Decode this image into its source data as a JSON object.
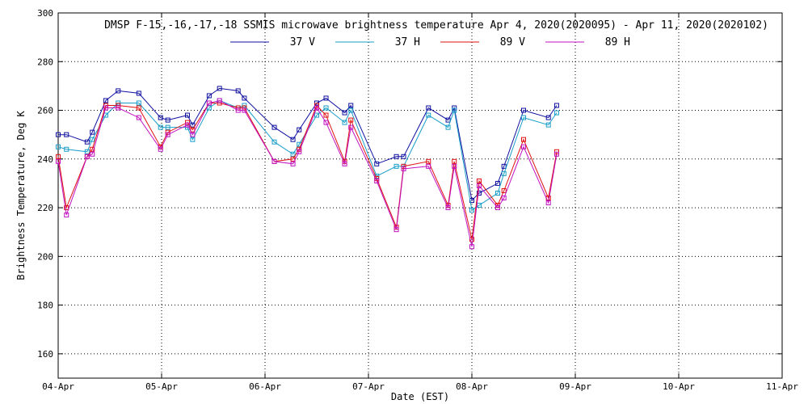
{
  "chart_data": {
    "type": "line",
    "title": "DMSP F-15,-16,-17,-18 SSMIS microwave brightness temperature Apr  4, 2020(2020095) - Apr 11, 2020(2020102)",
    "xlabel": "Date (EST)",
    "ylabel": "Brightness Temperature, Deg K",
    "x_unit": "days",
    "xlim": [
      0,
      7
    ],
    "ylim": [
      150,
      300
    ],
    "x_ticks": [
      0,
      1,
      2,
      3,
      4,
      5,
      6,
      7
    ],
    "x_tick_labels": [
      "04-Apr",
      "05-Apr",
      "06-Apr",
      "07-Apr",
      "08-Apr",
      "09-Apr",
      "10-Apr",
      "11-Apr"
    ],
    "y_ticks": [
      160,
      180,
      200,
      220,
      240,
      260,
      280,
      300
    ],
    "grid": true,
    "legend_position": "top-center",
    "series": [
      {
        "name": "37 V",
        "color": "#1010a0",
        "points": [
          [
            0.0,
            250
          ],
          [
            0.08,
            250
          ],
          [
            0.28,
            247
          ],
          [
            0.33,
            251
          ],
          [
            0.46,
            264
          ],
          [
            0.58,
            268
          ],
          [
            0.78,
            267
          ],
          [
            0.99,
            257
          ],
          [
            1.06,
            256
          ],
          [
            1.25,
            258
          ],
          [
            1.3,
            254
          ],
          [
            1.46,
            266
          ],
          [
            1.56,
            269
          ],
          [
            1.74,
            268
          ],
          [
            1.8,
            265
          ],
          [
            2.09,
            253
          ],
          [
            2.27,
            248
          ],
          [
            2.33,
            252
          ],
          [
            2.5,
            263
          ],
          [
            2.59,
            265
          ],
          [
            2.77,
            259
          ],
          [
            2.83,
            262
          ],
          [
            3.08,
            238
          ],
          [
            3.27,
            241
          ],
          [
            3.34,
            241
          ],
          [
            3.58,
            261
          ],
          [
            3.77,
            256
          ],
          [
            3.83,
            261
          ],
          [
            4.0,
            223
          ],
          [
            4.07,
            226
          ],
          [
            4.25,
            230
          ],
          [
            4.31,
            237
          ],
          [
            4.5,
            260
          ],
          [
            4.74,
            257
          ],
          [
            4.82,
            262
          ]
        ]
      },
      {
        "name": "37 H",
        "color": "#1a9ec8",
        "points": [
          [
            0.0,
            245
          ],
          [
            0.08,
            244
          ],
          [
            0.28,
            243
          ],
          [
            0.33,
            248
          ],
          [
            0.46,
            258
          ],
          [
            0.58,
            263
          ],
          [
            0.78,
            263
          ],
          [
            0.99,
            253
          ],
          [
            1.06,
            253
          ],
          [
            1.25,
            253
          ],
          [
            1.3,
            248
          ],
          [
            1.46,
            261
          ],
          [
            1.56,
            264
          ],
          [
            1.74,
            261
          ],
          [
            1.8,
            262
          ],
          [
            2.09,
            247
          ],
          [
            2.27,
            242
          ],
          [
            2.33,
            246
          ],
          [
            2.5,
            258
          ],
          [
            2.59,
            261
          ],
          [
            2.77,
            255
          ],
          [
            2.83,
            260
          ],
          [
            3.08,
            233
          ],
          [
            3.27,
            237
          ],
          [
            3.34,
            237
          ],
          [
            3.58,
            258
          ],
          [
            3.77,
            253
          ],
          [
            3.83,
            260
          ],
          [
            4.0,
            219
          ],
          [
            4.07,
            221
          ],
          [
            4.25,
            226
          ],
          [
            4.31,
            234
          ],
          [
            4.5,
            257
          ],
          [
            4.74,
            254
          ],
          [
            4.82,
            259
          ]
        ]
      },
      {
        "name": "89 V",
        "color": "#e01010",
        "points": [
          [
            0.0,
            241
          ],
          [
            0.08,
            220
          ],
          [
            0.28,
            241
          ],
          [
            0.33,
            244
          ],
          [
            0.46,
            262
          ],
          [
            0.58,
            262
          ],
          [
            0.78,
            261
          ],
          [
            0.99,
            245
          ],
          [
            1.06,
            251
          ],
          [
            1.25,
            255
          ],
          [
            1.3,
            252
          ],
          [
            1.46,
            263
          ],
          [
            1.56,
            263
          ],
          [
            1.74,
            261
          ],
          [
            1.8,
            261
          ],
          [
            2.09,
            239
          ],
          [
            2.27,
            240
          ],
          [
            2.33,
            244
          ],
          [
            2.5,
            262
          ],
          [
            2.59,
            258
          ],
          [
            2.77,
            239
          ],
          [
            2.83,
            256
          ],
          [
            3.08,
            232
          ],
          [
            3.27,
            212
          ],
          [
            3.34,
            237
          ],
          [
            3.58,
            239
          ],
          [
            3.77,
            221
          ],
          [
            3.83,
            239
          ],
          [
            4.0,
            207
          ],
          [
            4.07,
            231
          ],
          [
            4.25,
            221
          ],
          [
            4.31,
            227
          ],
          [
            4.5,
            248
          ],
          [
            4.74,
            224
          ],
          [
            4.82,
            243
          ]
        ]
      },
      {
        "name": "89 H",
        "color": "#c010c0",
        "points": [
          [
            0.0,
            239
          ],
          [
            0.08,
            217
          ],
          [
            0.28,
            241
          ],
          [
            0.33,
            242
          ],
          [
            0.46,
            261
          ],
          [
            0.58,
            261
          ],
          [
            0.78,
            257
          ],
          [
            0.99,
            244
          ],
          [
            1.06,
            250
          ],
          [
            1.25,
            254
          ],
          [
            1.3,
            250
          ],
          [
            1.46,
            263
          ],
          [
            1.56,
            264
          ],
          [
            1.74,
            260
          ],
          [
            1.8,
            260
          ],
          [
            2.09,
            239
          ],
          [
            2.27,
            238
          ],
          [
            2.33,
            243
          ],
          [
            2.5,
            261
          ],
          [
            2.59,
            255
          ],
          [
            2.77,
            238
          ],
          [
            2.83,
            253
          ],
          [
            3.08,
            231
          ],
          [
            3.27,
            211
          ],
          [
            3.34,
            236
          ],
          [
            3.58,
            237
          ],
          [
            3.77,
            220
          ],
          [
            3.83,
            237
          ],
          [
            4.0,
            204
          ],
          [
            4.07,
            229
          ],
          [
            4.25,
            220
          ],
          [
            4.31,
            224
          ],
          [
            4.5,
            245
          ],
          [
            4.74,
            222
          ],
          [
            4.82,
            242
          ]
        ]
      }
    ]
  }
}
